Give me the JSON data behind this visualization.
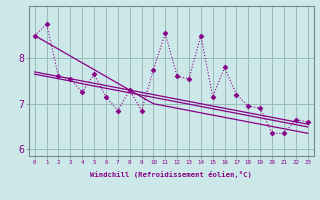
{
  "xlabel": "Windchill (Refroidissement éolien,°C)",
  "x": [
    0,
    1,
    2,
    3,
    4,
    5,
    6,
    7,
    8,
    9,
    10,
    11,
    12,
    13,
    14,
    15,
    16,
    17,
    18,
    19,
    20,
    21,
    22,
    23
  ],
  "y_main": [
    8.5,
    8.75,
    7.6,
    7.55,
    7.25,
    7.65,
    7.15,
    6.85,
    7.3,
    6.85,
    7.75,
    8.55,
    7.6,
    7.55,
    8.5,
    7.15,
    7.8,
    7.2,
    6.95,
    6.9,
    6.35,
    6.35,
    6.65,
    6.6
  ],
  "y_trend_upper1": [
    7.65,
    7.6,
    7.55,
    7.5,
    7.44,
    7.39,
    7.34,
    7.29,
    7.24,
    7.19,
    7.14,
    7.09,
    7.04,
    6.99,
    6.94,
    6.89,
    6.84,
    6.79,
    6.74,
    6.69,
    6.64,
    6.59,
    6.54,
    6.49
  ],
  "y_trend_upper2": [
    7.7,
    7.65,
    7.6,
    7.55,
    7.5,
    7.45,
    7.4,
    7.35,
    7.3,
    7.25,
    7.2,
    7.15,
    7.1,
    7.05,
    7.0,
    6.95,
    6.9,
    6.85,
    6.8,
    6.75,
    6.7,
    6.65,
    6.6,
    6.55
  ],
  "y_trend_long": [
    8.5,
    8.35,
    8.2,
    8.05,
    7.9,
    7.75,
    7.6,
    7.45,
    7.3,
    7.15,
    7.0,
    6.95,
    6.9,
    6.85,
    6.8,
    6.75,
    6.7,
    6.65,
    6.6,
    6.55,
    6.5,
    6.45,
    6.4,
    6.35
  ],
  "line_color": "#880088",
  "bg_color": "#cce8e8",
  "grid_color": "#99bbbb",
  "ylim": [
    5.85,
    9.15
  ],
  "yticks": [
    6,
    7,
    8
  ],
  "xlim": [
    -0.5,
    23.5
  ]
}
